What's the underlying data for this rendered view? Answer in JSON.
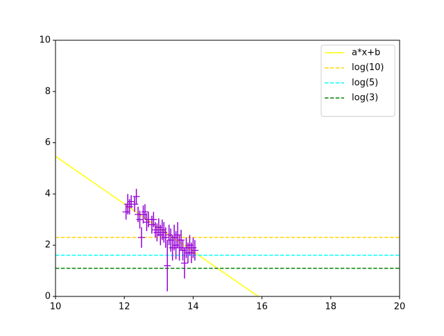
{
  "chart_data": {
    "type": "line",
    "xlim": [
      10,
      20
    ],
    "xticks": [
      10,
      12,
      14,
      16,
      18,
      20
    ],
    "ylim": [
      0,
      10
    ],
    "yticks": [
      0,
      2,
      4,
      6,
      8,
      10
    ],
    "grid": false,
    "legend": "upper right",
    "series": [
      {
        "name": "a*x+b",
        "color": "#ffff00",
        "linestyle": "solid",
        "x": [
          10,
          15.89
        ],
        "values": [
          5.47,
          0
        ]
      },
      {
        "name": "log(10)",
        "color": "#ffd700",
        "linestyle": "dashed",
        "x": [
          10,
          20
        ],
        "values": [
          2.303,
          2.303
        ]
      },
      {
        "name": "log(5)",
        "color": "#00ffff",
        "linestyle": "dashed",
        "x": [
          10,
          20
        ],
        "values": [
          1.609,
          1.609
        ]
      },
      {
        "name": "log(3)",
        "color": "#008000",
        "linestyle": "dashed",
        "x": [
          10,
          20
        ],
        "values": [
          1.099,
          1.099
        ]
      }
    ],
    "errorbar": {
      "color": "#9400d3",
      "x": [
        12.05,
        12.1,
        12.15,
        12.2,
        12.3,
        12.35,
        12.4,
        12.45,
        12.5,
        12.55,
        12.6,
        12.65,
        12.7,
        12.8,
        12.85,
        12.9,
        12.95,
        13.0,
        13.05,
        13.1,
        13.15,
        13.2,
        13.25,
        13.3,
        13.35,
        13.4,
        13.45,
        13.5,
        13.55,
        13.6,
        13.65,
        13.7,
        13.75,
        13.8,
        13.85,
        13.9,
        13.95,
        14.0,
        14.05
      ],
      "values": [
        3.3,
        3.6,
        3.5,
        3.7,
        3.6,
        3.9,
        3.2,
        3.0,
        2.3,
        3.2,
        3.3,
        2.9,
        3.0,
        2.8,
        3.0,
        2.6,
        2.5,
        2.7,
        2.4,
        2.6,
        2.5,
        2.3,
        1.2,
        2.4,
        2.2,
        1.9,
        2.3,
        2.0,
        2.4,
        1.9,
        2.2,
        1.8,
        1.3,
        1.9,
        1.7,
        2.0,
        1.7,
        1.9,
        1.8
      ],
      "errors": [
        0.3,
        0.4,
        0.3,
        0.25,
        0.3,
        0.3,
        0.3,
        0.35,
        0.4,
        0.35,
        0.3,
        0.35,
        0.3,
        0.35,
        0.3,
        0.3,
        0.35,
        0.35,
        0.4,
        0.4,
        0.4,
        0.4,
        1.0,
        0.4,
        0.45,
        0.5,
        0.5,
        0.55,
        0.5,
        0.5,
        0.4,
        0.4,
        0.6,
        0.4,
        0.4,
        0.4,
        0.4,
        0.4,
        0.4
      ]
    }
  }
}
